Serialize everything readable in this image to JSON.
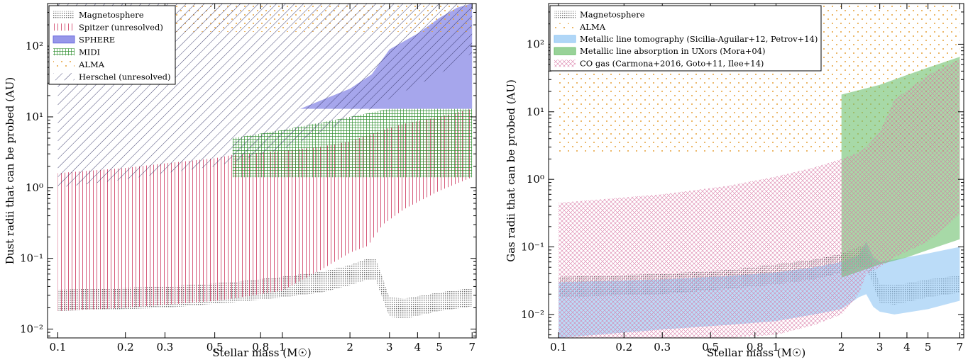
{
  "figure": {
    "background": "#ffffff"
  },
  "chart_data": [
    {
      "type": "area",
      "xlabel": "Stellar mass (M☉)",
      "ylabel": "Dust radii that can be probed (AU)",
      "xscale": "log",
      "yscale": "log",
      "xlim": [
        0.09,
        7.3
      ],
      "ylim": [
        0.0075,
        400
      ],
      "xticks": [
        0.1,
        0.2,
        0.3,
        0.5,
        0.8,
        1,
        2,
        3,
        4,
        5,
        7
      ],
      "xtick_labels": [
        "0.1",
        "0.2",
        "0.3",
        "0.5",
        "0.8",
        "1",
        "2",
        "3",
        "4",
        "5",
        "7"
      ],
      "yticks": [
        0.01,
        0.1,
        1,
        10,
        100
      ],
      "ytick_labels": [
        "10⁻²",
        "10⁻¹",
        "10⁰",
        "10¹",
        "10²"
      ],
      "legend_position": "top-left",
      "regions": [
        {
          "name": "Magnetosphere",
          "hatch": "dots",
          "color": "#7a7a7a",
          "x": [
            0.1,
            0.3,
            0.6,
            1,
            1.5,
            2,
            2.4,
            2.6,
            3,
            3.5,
            5,
            7
          ],
          "lower": [
            0.018,
            0.02,
            0.024,
            0.028,
            0.033,
            0.042,
            0.05,
            0.05,
            0.015,
            0.014,
            0.018,
            0.021
          ],
          "upper": [
            0.036,
            0.04,
            0.046,
            0.055,
            0.065,
            0.08,
            0.1,
            0.1,
            0.028,
            0.027,
            0.033,
            0.038
          ]
        },
        {
          "name": "Spitzer (unresolved)",
          "hatch": "vertical",
          "color": "#d24a6e",
          "x": [
            0.1,
            0.2,
            0.3,
            0.5,
            0.6,
            1,
            1.5,
            2,
            2.4,
            2.8,
            3,
            3.5,
            5,
            7
          ],
          "lower": [
            0.018,
            0.02,
            0.022,
            0.025,
            0.027,
            0.035,
            0.07,
            0.12,
            0.15,
            0.3,
            0.35,
            0.5,
            0.9,
            1.4
          ],
          "upper": [
            1.6,
            1.9,
            2.2,
            2.6,
            2.9,
            3.3,
            3.8,
            4.5,
            5.5,
            6.5,
            7,
            8,
            10,
            13
          ]
        },
        {
          "name": "SPHERE",
          "hatch": "solid",
          "color": "#6b6bdf",
          "x": [
            1.2,
            2,
            2.5,
            3,
            4,
            5,
            6,
            7
          ],
          "lower": [
            13,
            13,
            13,
            13,
            13,
            13,
            13,
            13
          ],
          "upper": [
            13,
            25,
            40,
            90,
            150,
            250,
            350,
            400
          ]
        },
        {
          "name": "MIDI",
          "hatch": "grid",
          "color": "#3f9a3f",
          "x": [
            0.6,
            1,
            2,
            3,
            5,
            7
          ],
          "lower": [
            1.4,
            1.4,
            1.4,
            1.4,
            1.4,
            1.4
          ],
          "upper": [
            5,
            6.5,
            10,
            13,
            13,
            13
          ]
        },
        {
          "name": "ALMA",
          "hatch": "sparse-dots",
          "color": "#e6a23a",
          "x": [
            0.1,
            7
          ],
          "lower": [
            400,
            400
          ],
          "upper": [
            400,
            400
          ]
        },
        {
          "name": "Herschel (unresolved)",
          "hatch": "diagonal",
          "color": "#3a3a8e",
          "x": [
            0.1,
            0.2,
            0.3,
            0.5,
            0.6,
            1,
            2,
            3,
            5,
            7
          ],
          "lower": [
            1.0,
            1.3,
            1.6,
            2.0,
            2.3,
            3.5,
            9,
            18,
            40,
            80
          ],
          "upper": [
            400,
            400,
            400,
            400,
            400,
            400,
            400,
            400,
            400,
            400
          ]
        }
      ]
    },
    {
      "type": "area",
      "xlabel": "Stellar mass (M☉)",
      "ylabel": "Gas radii that can be probed (AU)",
      "xscale": "log",
      "yscale": "log",
      "xlim": [
        0.09,
        7.3
      ],
      "ylim": [
        0.0045,
        400
      ],
      "xticks": [
        0.1,
        0.2,
        0.3,
        0.5,
        0.8,
        1,
        2,
        3,
        4,
        5,
        7
      ],
      "xtick_labels": [
        "0.1",
        "0.2",
        "0.3",
        "0.5",
        "0.8",
        "1",
        "2",
        "3",
        "4",
        "5",
        "7"
      ],
      "yticks": [
        0.01,
        0.1,
        1,
        10,
        100
      ],
      "ytick_labels": [
        "10⁻²",
        "10⁻¹",
        "10⁰",
        "10¹",
        "10²"
      ],
      "legend_position": "top-left",
      "regions": [
        {
          "name": "Magnetosphere",
          "hatch": "dots",
          "color": "#7a7a7a",
          "x": [
            0.1,
            0.3,
            0.6,
            1,
            1.5,
            2,
            2.4,
            2.6,
            3,
            3.5,
            5,
            7
          ],
          "lower": [
            0.018,
            0.02,
            0.024,
            0.028,
            0.033,
            0.042,
            0.05,
            0.05,
            0.015,
            0.014,
            0.018,
            0.021
          ],
          "upper": [
            0.036,
            0.04,
            0.046,
            0.055,
            0.065,
            0.08,
            0.1,
            0.1,
            0.028,
            0.027,
            0.033,
            0.038
          ]
        },
        {
          "name": "ALMA",
          "hatch": "sparse-dots",
          "color": "#e6a23a",
          "x": [
            0.1,
            7
          ],
          "lower": [
            2.5,
            2.5
          ],
          "upper": [
            400,
            400
          ]
        },
        {
          "name": "Metallic line tomography (Sicilia-Aguilar+12, Petrov+14)",
          "hatch": "solid",
          "color": "#8ec5f3",
          "x": [
            0.1,
            0.3,
            0.6,
            1,
            1.5,
            2,
            2.4,
            2.6,
            2.8,
            3,
            3.5,
            5,
            7
          ],
          "lower": [
            0.0045,
            0.006,
            0.007,
            0.008,
            0.01,
            0.012,
            0.018,
            0.02,
            0.013,
            0.011,
            0.01,
            0.012,
            0.016
          ],
          "upper": [
            0.03,
            0.033,
            0.037,
            0.042,
            0.05,
            0.06,
            0.075,
            0.12,
            0.07,
            0.06,
            0.065,
            0.08,
            0.1
          ]
        },
        {
          "name": "Metallic line absorption in UXors (Mora+04)",
          "hatch": "solid",
          "color": "#6cbf6c",
          "x": [
            2,
            3,
            4,
            5,
            7
          ],
          "lower": [
            0.035,
            0.055,
            0.07,
            0.09,
            0.13
          ],
          "upper": [
            18,
            25,
            35,
            45,
            65
          ]
        },
        {
          "name": "CO gas (Carmona+2016, Goto+11, Ilee+14)",
          "hatch": "crosshatch",
          "color": "#d97aa6",
          "x": [
            0.1,
            0.3,
            0.6,
            1,
            1.5,
            2,
            2.4,
            2.6,
            3,
            3.5,
            5,
            7
          ],
          "lower": [
            0.0045,
            0.0045,
            0.0045,
            0.005,
            0.007,
            0.01,
            0.02,
            0.04,
            0.05,
            0.07,
            0.12,
            0.3
          ],
          "upper": [
            0.45,
            0.6,
            0.8,
            1.1,
            1.5,
            2.0,
            2.5,
            3.0,
            5.0,
            15,
            35,
            60
          ]
        }
      ]
    }
  ]
}
